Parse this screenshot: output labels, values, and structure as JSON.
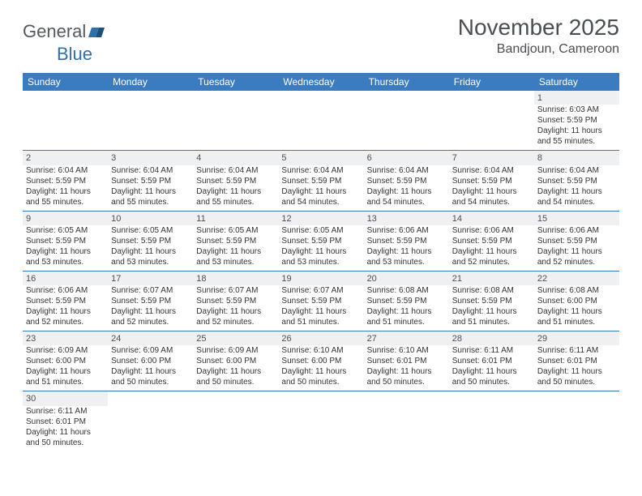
{
  "logo": {
    "general": "General",
    "blue": "Blue"
  },
  "title": "November 2025",
  "location": "Bandjoun, Cameroon",
  "colors": {
    "header_bg": "#3b7bbf",
    "header_text": "#ffffff",
    "shaded_bg": "#eef0f1",
    "border": "#3b7bbf",
    "title_color": "#4a4f54",
    "logo_gray": "#555a5e",
    "logo_blue": "#2f6faa"
  },
  "day_headers": [
    "Sunday",
    "Monday",
    "Tuesday",
    "Wednesday",
    "Thursday",
    "Friday",
    "Saturday"
  ],
  "weeks": [
    [
      null,
      null,
      null,
      null,
      null,
      null,
      {
        "n": "1",
        "sr": "6:03 AM",
        "ss": "5:59 PM",
        "dl": "11 hours and 55 minutes."
      }
    ],
    [
      {
        "n": "2",
        "sr": "6:04 AM",
        "ss": "5:59 PM",
        "dl": "11 hours and 55 minutes."
      },
      {
        "n": "3",
        "sr": "6:04 AM",
        "ss": "5:59 PM",
        "dl": "11 hours and 55 minutes."
      },
      {
        "n": "4",
        "sr": "6:04 AM",
        "ss": "5:59 PM",
        "dl": "11 hours and 55 minutes."
      },
      {
        "n": "5",
        "sr": "6:04 AM",
        "ss": "5:59 PM",
        "dl": "11 hours and 54 minutes."
      },
      {
        "n": "6",
        "sr": "6:04 AM",
        "ss": "5:59 PM",
        "dl": "11 hours and 54 minutes."
      },
      {
        "n": "7",
        "sr": "6:04 AM",
        "ss": "5:59 PM",
        "dl": "11 hours and 54 minutes."
      },
      {
        "n": "8",
        "sr": "6:04 AM",
        "ss": "5:59 PM",
        "dl": "11 hours and 54 minutes."
      }
    ],
    [
      {
        "n": "9",
        "sr": "6:05 AM",
        "ss": "5:59 PM",
        "dl": "11 hours and 53 minutes."
      },
      {
        "n": "10",
        "sr": "6:05 AM",
        "ss": "5:59 PM",
        "dl": "11 hours and 53 minutes."
      },
      {
        "n": "11",
        "sr": "6:05 AM",
        "ss": "5:59 PM",
        "dl": "11 hours and 53 minutes."
      },
      {
        "n": "12",
        "sr": "6:05 AM",
        "ss": "5:59 PM",
        "dl": "11 hours and 53 minutes."
      },
      {
        "n": "13",
        "sr": "6:06 AM",
        "ss": "5:59 PM",
        "dl": "11 hours and 53 minutes."
      },
      {
        "n": "14",
        "sr": "6:06 AM",
        "ss": "5:59 PM",
        "dl": "11 hours and 52 minutes."
      },
      {
        "n": "15",
        "sr": "6:06 AM",
        "ss": "5:59 PM",
        "dl": "11 hours and 52 minutes."
      }
    ],
    [
      {
        "n": "16",
        "sr": "6:06 AM",
        "ss": "5:59 PM",
        "dl": "11 hours and 52 minutes."
      },
      {
        "n": "17",
        "sr": "6:07 AM",
        "ss": "5:59 PM",
        "dl": "11 hours and 52 minutes."
      },
      {
        "n": "18",
        "sr": "6:07 AM",
        "ss": "5:59 PM",
        "dl": "11 hours and 52 minutes."
      },
      {
        "n": "19",
        "sr": "6:07 AM",
        "ss": "5:59 PM",
        "dl": "11 hours and 51 minutes."
      },
      {
        "n": "20",
        "sr": "6:08 AM",
        "ss": "5:59 PM",
        "dl": "11 hours and 51 minutes."
      },
      {
        "n": "21",
        "sr": "6:08 AM",
        "ss": "5:59 PM",
        "dl": "11 hours and 51 minutes."
      },
      {
        "n": "22",
        "sr": "6:08 AM",
        "ss": "6:00 PM",
        "dl": "11 hours and 51 minutes."
      }
    ],
    [
      {
        "n": "23",
        "sr": "6:09 AM",
        "ss": "6:00 PM",
        "dl": "11 hours and 51 minutes."
      },
      {
        "n": "24",
        "sr": "6:09 AM",
        "ss": "6:00 PM",
        "dl": "11 hours and 50 minutes."
      },
      {
        "n": "25",
        "sr": "6:09 AM",
        "ss": "6:00 PM",
        "dl": "11 hours and 50 minutes."
      },
      {
        "n": "26",
        "sr": "6:10 AM",
        "ss": "6:00 PM",
        "dl": "11 hours and 50 minutes."
      },
      {
        "n": "27",
        "sr": "6:10 AM",
        "ss": "6:01 PM",
        "dl": "11 hours and 50 minutes."
      },
      {
        "n": "28",
        "sr": "6:11 AM",
        "ss": "6:01 PM",
        "dl": "11 hours and 50 minutes."
      },
      {
        "n": "29",
        "sr": "6:11 AM",
        "ss": "6:01 PM",
        "dl": "11 hours and 50 minutes."
      }
    ],
    [
      {
        "n": "30",
        "sr": "6:11 AM",
        "ss": "6:01 PM",
        "dl": "11 hours and 50 minutes."
      },
      null,
      null,
      null,
      null,
      null,
      null
    ]
  ],
  "labels": {
    "sunrise": "Sunrise: ",
    "sunset": "Sunset: ",
    "daylight": "Daylight: "
  }
}
